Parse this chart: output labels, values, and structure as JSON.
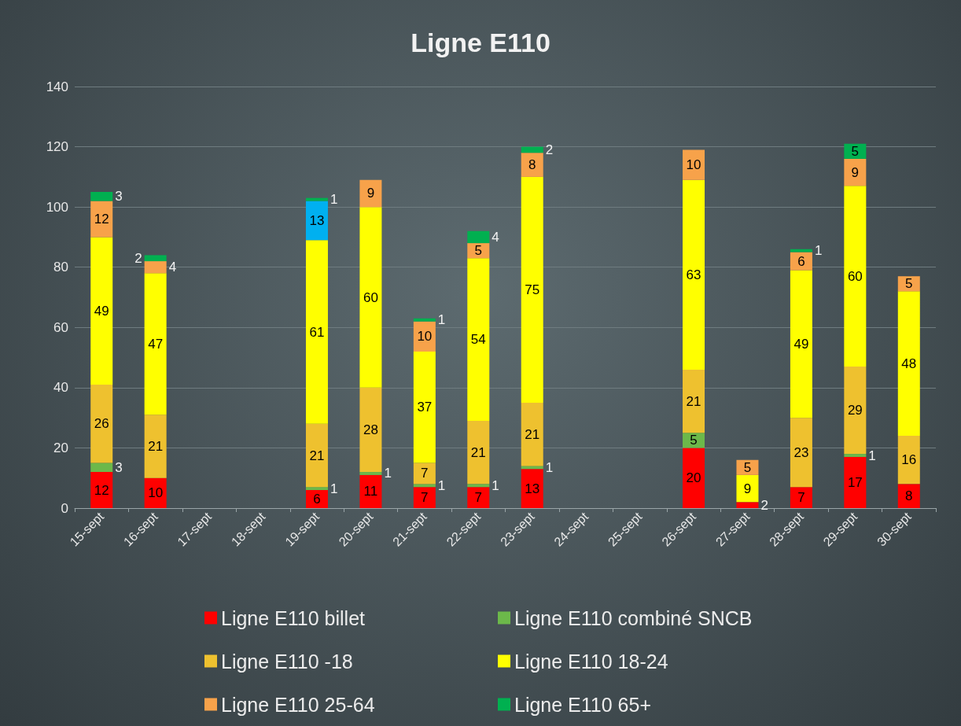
{
  "chart_data": {
    "type": "bar",
    "title": "Ligne E110",
    "stacked": true,
    "data_labels": true,
    "grid": "y",
    "legend": "bottom",
    "categories": [
      "15-sept",
      "16-sept",
      "17-sept",
      "18-sept",
      "19-sept",
      "20-sept",
      "21-sept",
      "22-sept",
      "23-sept",
      "24-sept",
      "25-sept",
      "26-sept",
      "27-sept",
      "28-sept",
      "29-sept",
      "30-sept"
    ],
    "ylim": [
      0,
      140
    ],
    "yticks": [
      0,
      20,
      40,
      60,
      80,
      100,
      120,
      140
    ],
    "series": [
      {
        "name": "Ligne E110 billet",
        "color": "#ff0000",
        "values": [
          12,
          10,
          null,
          null,
          6,
          11,
          7,
          7,
          13,
          null,
          null,
          20,
          2,
          7,
          17,
          8
        ]
      },
      {
        "name": "Ligne E110 combiné SNCB",
        "color": "#6cb84a",
        "values": [
          3,
          null,
          null,
          null,
          1,
          1,
          1,
          1,
          1,
          null,
          null,
          5,
          null,
          null,
          1,
          null
        ]
      },
      {
        "name": "Ligne E110 -18",
        "color": "#eec12f",
        "values": [
          26,
          21,
          null,
          null,
          21,
          28,
          7,
          21,
          21,
          null,
          null,
          21,
          null,
          23,
          29,
          16
        ]
      },
      {
        "name": "Ligne E110 18-24",
        "color": "#ffff00",
        "values": [
          49,
          47,
          null,
          null,
          61,
          60,
          37,
          54,
          75,
          null,
          null,
          63,
          9,
          49,
          60,
          48
        ]
      },
      {
        "color": "#00b0f0",
        "values": [
          null,
          null,
          null,
          null,
          13,
          null,
          null,
          null,
          null,
          null,
          null,
          null,
          null,
          null,
          null,
          null
        ]
      },
      {
        "name": "Ligne E110 25-64",
        "color": "#f7a24a",
        "values": [
          12,
          4,
          null,
          null,
          null,
          9,
          10,
          5,
          8,
          null,
          null,
          10,
          5,
          6,
          9,
          5
        ]
      },
      {
        "name": "Ligne E110 65+",
        "color": "#00b050",
        "values": [
          3,
          2,
          null,
          null,
          1,
          null,
          1,
          4,
          2,
          null,
          null,
          null,
          null,
          1,
          5,
          null
        ]
      }
    ]
  }
}
